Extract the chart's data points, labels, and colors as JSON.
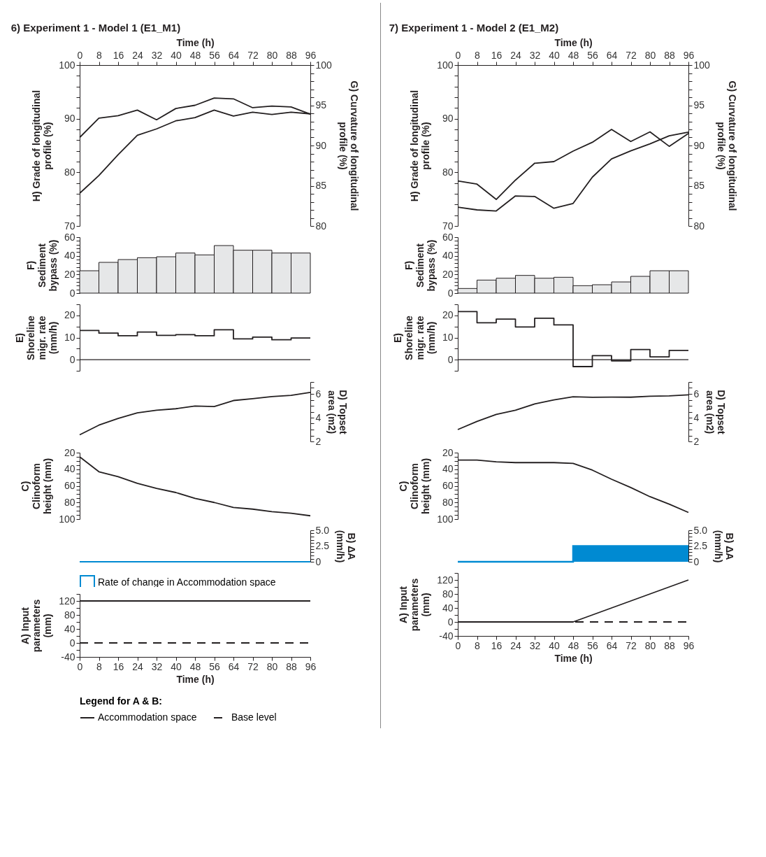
{
  "chart_data": [
    {
      "type": "line",
      "title": "6) Experiment 1 - Model 1 (E1_M1)",
      "xlabel": "Time (h)",
      "ylabel": "H) Grade of longitudinal profile (%)",
      "y2label": "G) Curvature of longitudinal profile (%)",
      "x": [
        0,
        8,
        16,
        24,
        32,
        40,
        48,
        56,
        64,
        72,
        80,
        88,
        96
      ],
      "xlim": [
        0,
        96
      ],
      "xticks": [
        0,
        8,
        16,
        24,
        32,
        40,
        48,
        56,
        64,
        72,
        80,
        88,
        96
      ],
      "ylim": [
        70,
        100
      ],
      "yticks": [
        70,
        {
          "value": 72,
          "label": null
        },
        {
          "value": 74,
          "label": null
        },
        {
          "value": 76,
          "label": null
        },
        {
          "value": 78,
          "label": null
        },
        80,
        {
          "value": 82,
          "label": null
        },
        {
          "value": 84,
          "label": null
        },
        {
          "value": 86,
          "label": null
        },
        {
          "value": 88,
          "label": null
        },
        90,
        {
          "value": 92,
          "label": null
        },
        {
          "value": 94,
          "label": null
        },
        {
          "value": 96,
          "label": null
        },
        {
          "value": 98,
          "label": null
        },
        100
      ],
      "y2lim": [
        80,
        100
      ],
      "y2ticks": [
        80,
        {
          "value": 81,
          "label": null
        },
        {
          "value": 82,
          "label": null
        },
        {
          "value": 83,
          "label": null
        },
        {
          "value": 84,
          "label": null
        },
        85,
        {
          "value": 86,
          "label": null
        },
        {
          "value": 87,
          "label": null
        },
        {
          "value": 88,
          "label": null
        },
        {
          "value": 89,
          "label": null
        },
        90,
        {
          "value": 91,
          "label": null
        },
        {
          "value": 92,
          "label": null
        },
        {
          "value": 93,
          "label": null
        },
        {
          "value": 94,
          "label": null
        },
        95,
        {
          "value": 96,
          "label": null
        },
        {
          "value": 97,
          "label": null
        },
        {
          "value": 98,
          "label": null
        },
        {
          "value": 99,
          "label": null
        },
        100
      ],
      "series": [
        {
          "color": "#231f20",
          "values": [
            76.1,
            79.4,
            83.3,
            86.9,
            88.1,
            89.6,
            90.2,
            91.6,
            90.5,
            91.2,
            90.8,
            91.2,
            90.9
          ]
        },
        {
          "color": "#231f20",
          "axis": "y2",
          "values": [
            91.0,
            93.4,
            93.7,
            94.4,
            93.2,
            94.6,
            95.0,
            95.9,
            95.8,
            94.7,
            94.9,
            94.8,
            93.9
          ]
        }
      ]
    },
    {
      "type": "histogram",
      "ylabel": "F) Sediment bypass (%)",
      "bins": [
        0,
        8,
        16,
        24,
        32,
        40,
        48,
        56,
        64,
        72,
        80,
        88,
        96
      ],
      "xlim": [
        0,
        96
      ],
      "tick_labels": "y",
      "ylim": [
        0,
        60
      ],
      "yticks": [
        0,
        {
          "value": 4,
          "label": null
        },
        {
          "value": 8,
          "label": null
        },
        {
          "value": 12,
          "label": null
        },
        {
          "value": 16,
          "label": null
        },
        20,
        {
          "value": 24,
          "label": null
        },
        {
          "value": 28,
          "label": null
        },
        {
          "value": 32,
          "label": null
        },
        {
          "value": 36,
          "label": null
        },
        40,
        {
          "value": 44,
          "label": null
        },
        {
          "value": 48,
          "label": null
        },
        {
          "value": 52,
          "label": null
        },
        {
          "value": 56,
          "label": null
        },
        60
      ],
      "series": [
        {
          "color": "#e6e7e8",
          "values": [
            24,
            33,
            36,
            38,
            39,
            43,
            41,
            51,
            46,
            46,
            43,
            43
          ]
        }
      ]
    },
    {
      "type": "step",
      "ylabel": "E) Shoreline migr. rate (mm/h)",
      "x": [
        0,
        8,
        16,
        24,
        32,
        40,
        48,
        56,
        64,
        72,
        80,
        88,
        96
      ],
      "xlim": [
        0,
        96
      ],
      "tick_labels": "y",
      "ylim": [
        -5,
        25
      ],
      "yticks": [
        {
          "value": -5,
          "label": null
        },
        0,
        {
          "value": 5,
          "label": null
        },
        10,
        {
          "value": 15,
          "label": null
        },
        20,
        {
          "value": 25,
          "label": null
        }
      ],
      "ref_lines": [
        {
          "axis": "y",
          "value": 0,
          "color": "#231f20"
        }
      ],
      "series": [
        {
          "color": "#231f20",
          "values": [
            13.2,
            12,
            10.8,
            12.5,
            11,
            11.3,
            10.8,
            13.5,
            9.4,
            10.2,
            9,
            9.8,
            9.8
          ]
        }
      ]
    },
    {
      "type": "line",
      "y2label": "D) Topset area (m2)",
      "x": [
        0,
        8,
        16,
        24,
        32,
        40,
        48,
        56,
        64,
        72,
        80,
        88,
        96
      ],
      "xlim": [
        0,
        96
      ],
      "tick_labels": "y",
      "y2lim": [
        2,
        7
      ],
      "y2ticks": [
        2,
        {
          "value": 2.5,
          "label": null
        },
        {
          "value": 3,
          "label": null
        },
        {
          "value": 3.5,
          "label": null
        },
        4,
        {
          "value": 4.5,
          "label": null
        },
        {
          "value": 5,
          "label": null
        },
        {
          "value": 5.5,
          "label": null
        },
        6,
        {
          "value": 6.5,
          "label": null
        },
        {
          "value": 7,
          "label": null
        }
      ],
      "series": [
        {
          "color": "#231f20",
          "axis": "y2",
          "values": [
            2.56,
            3.37,
            3.93,
            4.4,
            4.62,
            4.75,
            4.98,
            4.93,
            5.44,
            5.6,
            5.77,
            5.87,
            6.12
          ]
        }
      ]
    },
    {
      "type": "line",
      "ylabel": "C) Clinoform height (mm)",
      "x": [
        0,
        8,
        16,
        24,
        32,
        40,
        48,
        56,
        64,
        72,
        80,
        88,
        96
      ],
      "xlim": [
        0,
        96
      ],
      "tick_labels": "y",
      "ylim": [
        100,
        20
      ],
      "yticks": [
        20,
        {
          "value": 25,
          "label": null
        },
        {
          "value": 30,
          "label": null
        },
        {
          "value": 35,
          "label": null
        },
        40,
        {
          "value": 45,
          "label": null
        },
        {
          "value": 50,
          "label": null
        },
        {
          "value": 55,
          "label": null
        },
        60,
        {
          "value": 65,
          "label": null
        },
        {
          "value": 70,
          "label": null
        },
        {
          "value": 75,
          "label": null
        },
        80,
        {
          "value": 85,
          "label": null
        },
        {
          "value": 90,
          "label": null
        },
        {
          "value": 95,
          "label": null
        },
        100
      ],
      "series": [
        {
          "color": "#231f20",
          "values": [
            25,
            43,
            49,
            57,
            63,
            68,
            75,
            80,
            86,
            88,
            91,
            93,
            96
          ]
        }
      ]
    },
    {
      "type": "area",
      "y2label": "B) ΔA (mm/h)",
      "x": [
        0,
        8,
        16,
        24,
        32,
        40,
        48,
        56,
        64,
        72,
        80,
        88,
        96
      ],
      "xlim": [
        0,
        96
      ],
      "tick_labels": "y",
      "legend": "bottom",
      "y2lim": [
        0,
        5
      ],
      "y2ticks": [
        0,
        {
          "value": 0.5,
          "label": null
        },
        {
          "value": 1,
          "label": null
        },
        {
          "value": 1.5,
          "label": null
        },
        {
          "value": 2,
          "label": null
        },
        {
          "value": 2.5,
          "label": "2.5"
        },
        {
          "value": 3,
          "label": null
        },
        {
          "value": 3.5,
          "label": null
        },
        {
          "value": 4,
          "label": null
        },
        {
          "value": 4.5,
          "label": null
        },
        {
          "value": 5,
          "label": "5.0"
        }
      ],
      "series": [
        {
          "name": "Rate of change in Accommodation space",
          "type": "line",
          "color": "#008ad2",
          "axis": "y2",
          "values": [
            0,
            0,
            0,
            0,
            0,
            0,
            0,
            0,
            0,
            0,
            0,
            0,
            0
          ]
        }
      ]
    },
    {
      "type": "line",
      "xlabel": "Time (h)",
      "ylabel": "A) Input parameters (mm)",
      "legend": "bottom",
      "legend_title": "Legend for A & B:",
      "x": [
        0,
        8,
        16,
        24,
        32,
        40,
        48,
        56,
        64,
        72,
        80,
        88,
        96
      ],
      "xlim": [
        0,
        96
      ],
      "xticks": [
        0,
        8,
        16,
        24,
        32,
        40,
        48,
        56,
        64,
        72,
        80,
        88,
        96
      ],
      "ylim": [
        -40,
        140
      ],
      "yticks": [
        -40,
        {
          "value": -20,
          "label": null
        },
        0,
        {
          "value": 20,
          "label": null
        },
        40,
        {
          "value": 60,
          "label": null
        },
        80,
        {
          "value": 100,
          "label": null
        },
        120,
        {
          "value": 140,
          "label": null
        }
      ],
      "series": [
        {
          "name": "Accommodation space",
          "color": "#231f20",
          "line_style": "solid",
          "values": [
            120,
            120,
            120,
            120,
            120,
            120,
            120,
            120,
            120,
            120,
            120,
            120,
            120
          ]
        },
        {
          "name": "Base level",
          "color": "#231f20",
          "line_style": "dashed",
          "values": [
            0,
            0,
            0,
            0,
            0,
            0,
            0,
            0,
            0,
            0,
            0,
            0,
            0
          ]
        }
      ]
    },
    {
      "type": "line",
      "title": "7) Experiment 1 - Model 2 (E1_M2)",
      "xlabel": "Time (h)",
      "ylabel": "H) Grade of longitudinal profile (%)",
      "y2label": "G) Curvature of longitudinal profile (%)",
      "x": [
        0,
        8,
        16,
        24,
        32,
        40,
        48,
        56,
        64,
        72,
        80,
        88,
        96
      ],
      "xlim": [
        0,
        96
      ],
      "xticks": [
        0,
        8,
        16,
        24,
        32,
        40,
        48,
        56,
        64,
        72,
        80,
        88,
        96
      ],
      "ylim": [
        70,
        100
      ],
      "yticks": [
        70,
        {
          "value": 72,
          "label": null
        },
        {
          "value": 74,
          "label": null
        },
        {
          "value": 76,
          "label": null
        },
        {
          "value": 78,
          "label": null
        },
        80,
        {
          "value": 82,
          "label": null
        },
        {
          "value": 84,
          "label": null
        },
        {
          "value": 86,
          "label": null
        },
        {
          "value": 88,
          "label": null
        },
        90,
        {
          "value": 92,
          "label": null
        },
        {
          "value": 94,
          "label": null
        },
        {
          "value": 96,
          "label": null
        },
        {
          "value": 98,
          "label": null
        },
        100
      ],
      "y2lim": [
        80,
        100
      ],
      "y2ticks": [
        80,
        {
          "value": 81,
          "label": null
        },
        {
          "value": 82,
          "label": null
        },
        {
          "value": 83,
          "label": null
        },
        {
          "value": 84,
          "label": null
        },
        85,
        {
          "value": 86,
          "label": null
        },
        {
          "value": 87,
          "label": null
        },
        {
          "value": 88,
          "label": null
        },
        {
          "value": 89,
          "label": null
        },
        90,
        {
          "value": 91,
          "label": null
        },
        {
          "value": 92,
          "label": null
        },
        {
          "value": 93,
          "label": null
        },
        {
          "value": 94,
          "label": null
        },
        95,
        {
          "value": 96,
          "label": null
        },
        {
          "value": 97,
          "label": null
        },
        {
          "value": 98,
          "label": null
        },
        {
          "value": 99,
          "label": null
        },
        100
      ],
      "series": [
        {
          "color": "#231f20",
          "values": [
            73.5,
            73.0,
            72.8,
            75.6,
            75.5,
            73.3,
            74.2,
            79.1,
            82.5,
            84.0,
            85.3,
            86.8,
            87.5
          ]
        },
        {
          "color": "#231f20",
          "axis": "y2",
          "values": [
            85.6,
            85.2,
            83.3,
            85.7,
            87.8,
            88.0,
            89.3,
            90.4,
            92.0,
            90.5,
            91.7,
            89.9,
            91.5
          ]
        }
      ]
    },
    {
      "type": "histogram",
      "ylabel": "F) Sediment bypass (%)",
      "bins": [
        0,
        8,
        16,
        24,
        32,
        40,
        48,
        56,
        64,
        72,
        80,
        88,
        96
      ],
      "xlim": [
        0,
        96
      ],
      "tick_labels": "y",
      "ylim": [
        0,
        60
      ],
      "yticks": [
        0,
        {
          "value": 4,
          "label": null
        },
        {
          "value": 8,
          "label": null
        },
        {
          "value": 12,
          "label": null
        },
        {
          "value": 16,
          "label": null
        },
        20,
        {
          "value": 24,
          "label": null
        },
        {
          "value": 28,
          "label": null
        },
        {
          "value": 32,
          "label": null
        },
        {
          "value": 36,
          "label": null
        },
        40,
        {
          "value": 44,
          "label": null
        },
        {
          "value": 48,
          "label": null
        },
        {
          "value": 52,
          "label": null
        },
        {
          "value": 56,
          "label": null
        },
        60
      ],
      "series": [
        {
          "color": "#e6e7e8",
          "values": [
            5,
            14,
            16,
            19,
            16,
            17,
            8,
            9,
            12,
            18,
            24,
            24
          ]
        }
      ]
    },
    {
      "type": "step",
      "ylabel": "E) Shoreline migr. rate (mm/h)",
      "x": [
        0,
        8,
        16,
        24,
        32,
        40,
        48,
        56,
        64,
        72,
        80,
        88,
        96
      ],
      "xlim": [
        0,
        96
      ],
      "tick_labels": "y",
      "ylim": [
        -5,
        25
      ],
      "yticks": [
        {
          "value": -5,
          "label": null
        },
        0,
        {
          "value": 5,
          "label": null
        },
        10,
        {
          "value": 15,
          "label": null
        },
        20,
        {
          "value": 25,
          "label": null
        }
      ],
      "ref_lines": [
        {
          "axis": "y",
          "value": 0,
          "color": "#231f20"
        }
      ],
      "series": [
        {
          "color": "#231f20",
          "values": [
            21.7,
            16.7,
            18.3,
            14.8,
            18.7,
            15.7,
            -3.1,
            1.8,
            -0.5,
            4.6,
            1.3,
            4.2,
            4.2
          ]
        }
      ]
    },
    {
      "type": "line",
      "y2label": "D) Topset area (m2)",
      "x": [
        0,
        8,
        16,
        24,
        32,
        40,
        48,
        56,
        64,
        72,
        80,
        88,
        96
      ],
      "xlim": [
        0,
        96
      ],
      "tick_labels": "y",
      "y2lim": [
        2,
        7
      ],
      "y2ticks": [
        2,
        {
          "value": 2.5,
          "label": null
        },
        {
          "value": 3,
          "label": null
        },
        {
          "value": 3.5,
          "label": null
        },
        4,
        {
          "value": 4.5,
          "label": null
        },
        {
          "value": 5,
          "label": null
        },
        {
          "value": 5.5,
          "label": null
        },
        6,
        {
          "value": 6.5,
          "label": null
        },
        {
          "value": 7,
          "label": null
        }
      ],
      "series": [
        {
          "color": "#231f20",
          "axis": "y2",
          "values": [
            3.0,
            3.68,
            4.27,
            4.62,
            5.15,
            5.49,
            5.76,
            5.71,
            5.73,
            5.72,
            5.8,
            5.83,
            5.92
          ]
        }
      ]
    },
    {
      "type": "line",
      "ylabel": "C) Clinoform height (mm)",
      "x": [
        0,
        8,
        16,
        24,
        32,
        40,
        48,
        56,
        64,
        72,
        80,
        88,
        96
      ],
      "xlim": [
        0,
        96
      ],
      "tick_labels": "y",
      "ylim": [
        100,
        20
      ],
      "yticks": [
        20,
        {
          "value": 25,
          "label": null
        },
        {
          "value": 30,
          "label": null
        },
        {
          "value": 35,
          "label": null
        },
        40,
        {
          "value": 45,
          "label": null
        },
        {
          "value": 50,
          "label": null
        },
        {
          "value": 55,
          "label": null
        },
        60,
        {
          "value": 65,
          "label": null
        },
        {
          "value": 70,
          "label": null
        },
        {
          "value": 75,
          "label": null
        },
        80,
        {
          "value": 85,
          "label": null
        },
        {
          "value": 90,
          "label": null
        },
        {
          "value": 95,
          "label": null
        },
        100
      ],
      "series": [
        {
          "color": "#231f20",
          "values": [
            29,
            29,
            31,
            32,
            32,
            32,
            33,
            41,
            52,
            62,
            73,
            82,
            92
          ]
        }
      ]
    },
    {
      "type": "area",
      "y2label": "B) ΔA (mm/h)",
      "x": [
        0,
        8,
        16,
        24,
        32,
        40,
        48,
        56,
        64,
        72,
        80,
        88,
        96
      ],
      "xlim": [
        0,
        96
      ],
      "tick_labels": "y",
      "y2lim": [
        0,
        5
      ],
      "y2ticks": [
        0,
        {
          "value": 0.5,
          "label": null
        },
        {
          "value": 1,
          "label": null
        },
        {
          "value": 1.5,
          "label": null
        },
        {
          "value": 2,
          "label": null
        },
        {
          "value": 2.5,
          "label": "2.5"
        },
        {
          "value": 3,
          "label": null
        },
        {
          "value": 3.5,
          "label": null
        },
        {
          "value": 4,
          "label": null
        },
        {
          "value": 4.5,
          "label": null
        },
        {
          "value": 5,
          "label": "5.0"
        }
      ],
      "series": [
        {
          "color": "#008ad2",
          "axis": "y2",
          "values": [
            0,
            0,
            0,
            0,
            0,
            0,
            2.5,
            2.5,
            2.5,
            2.5,
            2.5,
            2.5,
            2.5
          ]
        }
      ]
    },
    {
      "type": "line",
      "xlabel": "Time (h)",
      "ylabel": "A) Input parameters (mm)",
      "x": [
        0,
        8,
        16,
        24,
        32,
        40,
        48,
        56,
        64,
        72,
        80,
        88,
        96
      ],
      "xlim": [
        0,
        96
      ],
      "xticks": [
        0,
        8,
        16,
        24,
        32,
        40,
        48,
        56,
        64,
        72,
        80,
        88,
        96
      ],
      "ylim": [
        -40,
        140
      ],
      "yticks": [
        -40,
        {
          "value": -20,
          "label": null
        },
        0,
        {
          "value": 20,
          "label": null
        },
        40,
        {
          "value": 60,
          "label": null
        },
        80,
        {
          "value": 100,
          "label": null
        },
        120,
        {
          "value": 140,
          "label": null
        }
      ],
      "series": [
        {
          "color": "#231f20",
          "line_style": "solid",
          "values": [
            0,
            0,
            0,
            0,
            0,
            0,
            0,
            20,
            40,
            60,
            80,
            100,
            120
          ]
        },
        {
          "color": "#231f20",
          "line_style": "dashed",
          "values": [
            0,
            0,
            0,
            0,
            0,
            0,
            0,
            0,
            0,
            0,
            0,
            0,
            0
          ]
        }
      ]
    }
  ]
}
